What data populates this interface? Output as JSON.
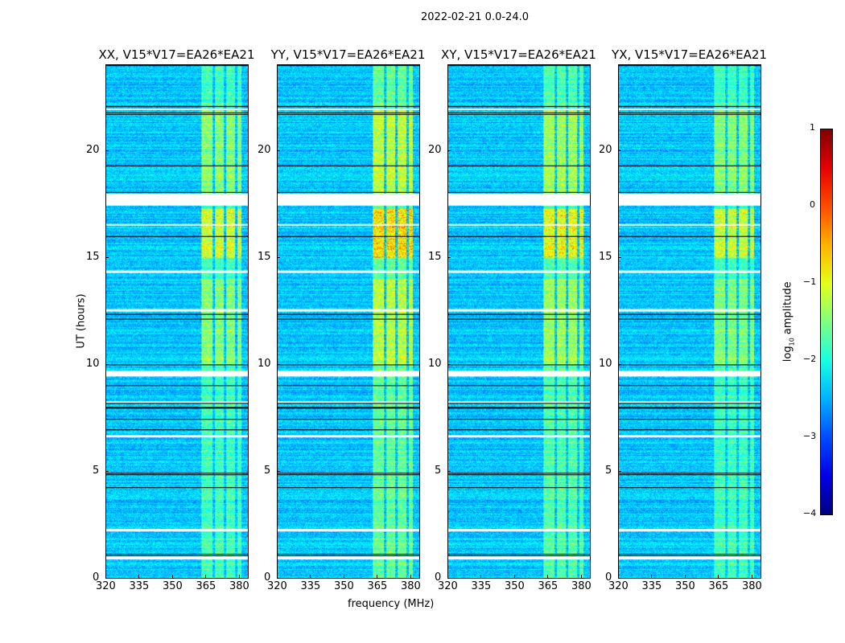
{
  "chart_data": {
    "type": "heatmap",
    "suptitle": "2022-02-21 0.0-24.0",
    "xlabel": "frequency (MHz)",
    "ylabel": "UT (hours)",
    "xlim": [
      320,
      384
    ],
    "ylim": [
      0,
      24
    ],
    "xticks": [
      "320",
      "335",
      "350",
      "365",
      "380"
    ],
    "yticks": [
      "0",
      "5",
      "10",
      "15",
      "20"
    ],
    "panels": [
      {
        "title": "XX, V15*V17=EA26*EA21",
        "band_gain": 1.0
      },
      {
        "title": "YY, V15*V17=EA26*EA21",
        "band_gain": 1.25
      },
      {
        "title": "XY, V15*V17=EA26*EA21",
        "band_gain": 1.1
      },
      {
        "title": "YX, V15*V17=EA26*EA21",
        "band_gain": 0.95
      }
    ],
    "bright_channels_mhz": [
      [
        363,
        368
      ],
      [
        369,
        373
      ],
      [
        374,
        378
      ],
      [
        379,
        381
      ]
    ],
    "flagged_hours": [
      [
        0.9,
        1.05
      ],
      [
        9.45,
        9.7
      ],
      [
        17.45,
        18.0
      ],
      [
        21.9,
        22.0
      ],
      [
        16.5,
        16.6
      ],
      [
        12.5,
        12.6
      ],
      [
        6.6,
        6.7
      ],
      [
        2.2,
        2.3
      ],
      [
        8.2,
        8.3
      ],
      [
        14.3,
        14.4
      ]
    ],
    "colorbar": {
      "label": "log10 amplitude",
      "label_main": "log",
      "label_sub": "10",
      "label_tail": " amplitude",
      "ticks": [
        "1",
        "0",
        "−1",
        "−2",
        "−3",
        "−4"
      ],
      "range": [
        -4,
        1
      ],
      "colormap": "jet"
    }
  }
}
